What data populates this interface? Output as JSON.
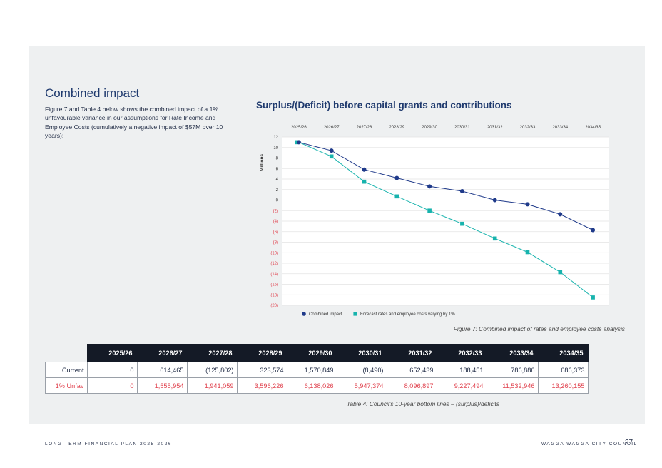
{
  "section": {
    "title": "Combined impact",
    "intro": "Figure 7 and Table 4 below shows the combined impact of a 1% unfavourable variance in our assumptions for Rate Income and Employee Costs (cumulatively a negative impact of $57M over 10 years):"
  },
  "figure_caption": "Figure 7: Combined impact of rates and employee costs analysis",
  "chart_data": {
    "type": "line",
    "title": "Surplus/(Deficit) before capital grants and contributions",
    "ylabel": "Millions",
    "xlabel": "",
    "x": [
      "2025/26",
      "2026/27",
      "2027/28",
      "2028/29",
      "2029/30",
      "2030/31",
      "2031/32",
      "2032/33",
      "2033/34",
      "2034/35"
    ],
    "y_ticks": [
      "12",
      "10",
      "8",
      "6",
      "4",
      "2",
      "0",
      "(2)",
      "(4)",
      "(6)",
      "(8)",
      "(10)",
      "(12)",
      "(14)",
      "(16)",
      "(18)",
      "(20)"
    ],
    "ylim": [
      -20,
      12
    ],
    "x_axis_position": "top",
    "grid": true,
    "legend_position": "bottom",
    "series": [
      {
        "name": "Combined impact",
        "color": "#1f3a8a",
        "marker": "circle",
        "values": [
          11.0,
          9.4,
          5.8,
          4.2,
          2.6,
          1.7,
          0.0,
          -0.8,
          -2.7,
          -5.7
        ]
      },
      {
        "name": "Forecast rates and employee costs varying by 1%",
        "color": "#17b3ad",
        "marker": "square",
        "values": [
          11.0,
          8.3,
          3.5,
          0.7,
          -2.0,
          -4.5,
          -7.3,
          -9.9,
          -13.7,
          -18.5
        ]
      }
    ]
  },
  "table": {
    "headers": [
      "2025/26",
      "2026/27",
      "2027/28",
      "2028/29",
      "2029/30",
      "2030/31",
      "2031/32",
      "2032/33",
      "2033/34",
      "2034/35"
    ],
    "rows": [
      {
        "label": "Current",
        "values": [
          "0",
          "614,465",
          "(125,802)",
          "323,574",
          "1,570,849",
          "(8,490)",
          "652,439",
          "188,451",
          "786,886",
          "686,373"
        ]
      },
      {
        "label": "1% Unfav",
        "values": [
          "0",
          "1,555,954",
          "1,941,059",
          "3,596,226",
          "6,138,026",
          "5,947,374",
          "8,096,897",
          "9,227,494",
          "11,532,946",
          "13,260,155"
        ]
      }
    ]
  },
  "table_caption": "Table 4: Council's 10-year bottom lines – (surplus)/deficits",
  "footer": {
    "left": "LONG TERM FINANCIAL PLAN 2025-2026",
    "right": "WAGGA WAGGA CITY COUNCIL",
    "page": "27"
  }
}
